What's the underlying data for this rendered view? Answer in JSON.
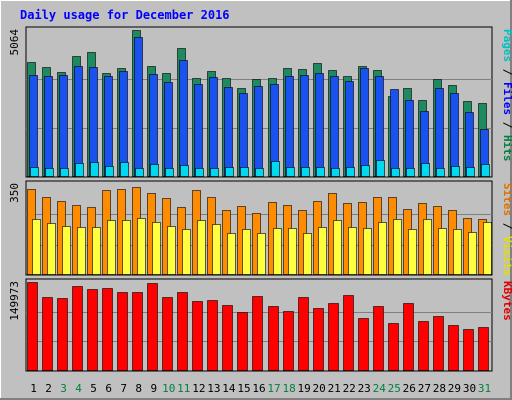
{
  "chart_data": {
    "type": "bar",
    "title": "Daily usage for December 2016",
    "categories": [
      "1",
      "2",
      "3",
      "4",
      "5",
      "6",
      "7",
      "8",
      "9",
      "10",
      "11",
      "12",
      "13",
      "14",
      "15",
      "16",
      "17",
      "18",
      "19",
      "20",
      "21",
      "22",
      "23",
      "24",
      "25",
      "26",
      "27",
      "28",
      "29",
      "30",
      "31"
    ],
    "weekend_days": [
      3,
      4,
      10,
      11,
      17,
      18,
      24,
      25,
      31
    ],
    "panels": [
      {
        "id": "hits-panel",
        "max_label": "5064",
        "ymax": 5064,
        "axis_labels": [
          {
            "text": "Pages",
            "color": "#00c0c0"
          },
          {
            "text": "Files",
            "color": "#0000ff"
          },
          {
            "text": "Hits",
            "color": "#008040"
          }
        ],
        "series": [
          {
            "name": "Hits",
            "color": "#1e8a60",
            "values": [
              3950,
              3780,
              3620,
              4180,
              4300,
              3580,
              3760,
              5064,
              3810,
              3580,
              4460,
              3410,
              3660,
              3400,
              3080,
              3390,
              3400,
              3740,
              3720,
              3920,
              3670,
              3470,
              3810,
              3700,
              2790,
              3080,
              2640,
              3370,
              3160,
              2630,
              2560
            ]
          },
          {
            "name": "Files",
            "color": "#1a52f0",
            "values": [
              3510,
              3480,
              3500,
              3830,
              3800,
              3480,
              3640,
              4840,
              3560,
              3280,
              4020,
              3210,
              3440,
              3110,
              2890,
              3130,
              3190,
              3490,
              3510,
              3580,
              3480,
              3310,
              3740,
              3480,
              3040,
              2650,
              2260,
              3050,
              2890,
              2250,
              1670
            ]
          },
          {
            "name": "Pages",
            "color": "#00d8f0",
            "values": [
              360,
              310,
              320,
              470,
              500,
              380,
              530,
              310,
              460,
              320,
              420,
              300,
              310,
              340,
              340,
              310,
              560,
              340,
              330,
              330,
              310,
              340,
              420,
              580,
              320,
              310,
              470,
              320,
              380,
              330,
              460
            ]
          }
        ]
      },
      {
        "id": "visits-panel",
        "max_label": "350",
        "ymax": 350,
        "axis_labels": [
          {
            "text": "Sites",
            "color": "#e07000"
          },
          {
            "text": "Visits",
            "color": "#e0e000"
          }
        ],
        "series": [
          {
            "name": "Sites",
            "color": "#ff8c00",
            "values": [
              330,
              300,
              285,
              270,
              260,
              325,
              330,
              340,
              315,
              295,
              260,
              325,
              300,
              250,
              265,
              240,
              280,
              270,
              250,
              285,
              315,
              275,
              280,
              300,
              300,
              255,
              275,
              265,
              250,
              220,
              215
            ]
          },
          {
            "name": "Visits",
            "color": "#ffff40",
            "values": [
              215,
              200,
              190,
              185,
              185,
              210,
              210,
              220,
              205,
              190,
              175,
              210,
              195,
              160,
              175,
              160,
              180,
              180,
              160,
              185,
              210,
              185,
              180,
              205,
              215,
              175,
              215,
              180,
              175,
              165,
              205
            ]
          }
        ]
      },
      {
        "id": "kbytes-panel",
        "max_label": "149973",
        "ymax": 149973,
        "axis_labels": [
          {
            "text": "KBytes",
            "color": "#e00000"
          }
        ],
        "series": [
          {
            "name": "KBytes",
            "color": "#ff0000",
            "values": [
              149973,
              125500,
              122600,
              143000,
              138300,
              139400,
              133900,
              133600,
              148000,
              124700,
              133900,
              118300,
              119400,
              111500,
              99000,
              126200,
              109400,
              101000,
              124800,
              106400,
              115400,
              128000,
              88600,
              109800,
              81600,
              114900,
              84000,
              92000,
              77800,
              71600,
              73800
            ]
          }
        ]
      }
    ]
  }
}
